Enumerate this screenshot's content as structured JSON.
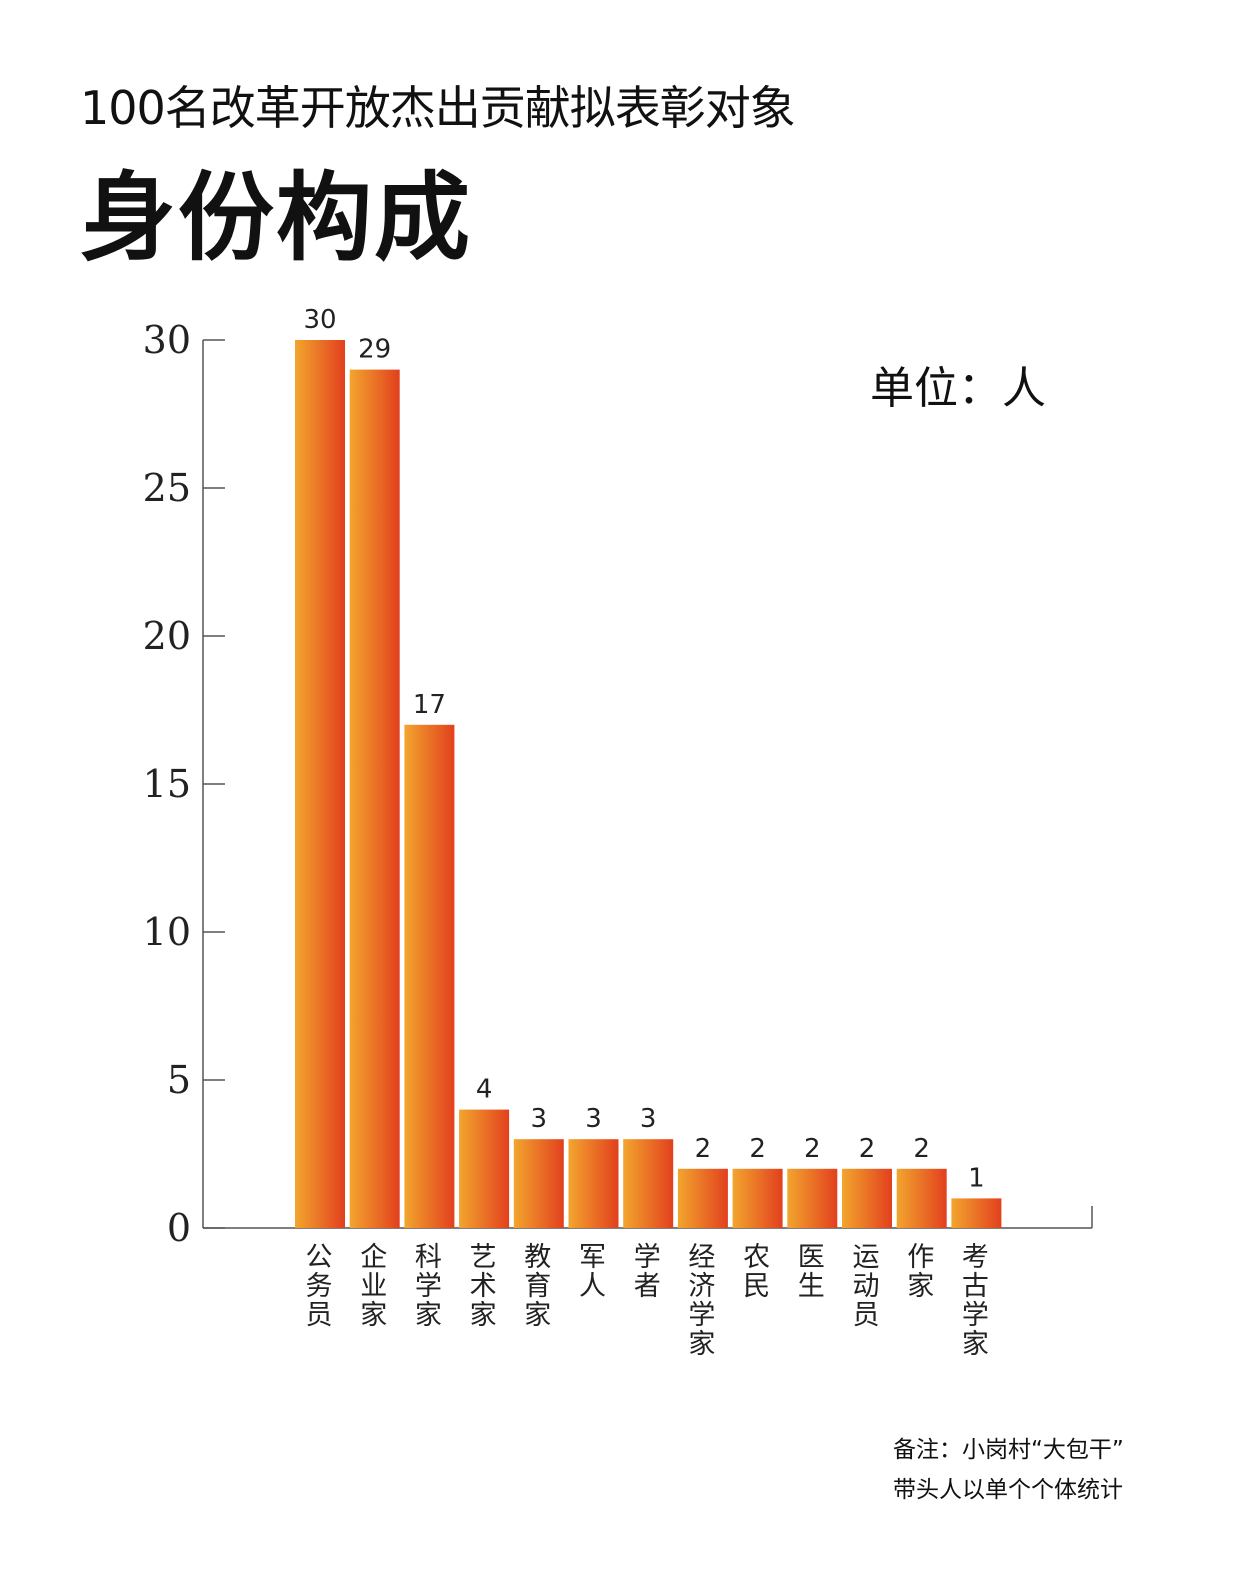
{
  "header": {
    "subtitle": "100名改革开放杰出贡献拟表彰对象",
    "title": "身份构成"
  },
  "unit_label": "单位：人",
  "note": {
    "line1": "备注：小岗村“大包干”",
    "line2": "带头人以单个个体统计"
  },
  "colors": {
    "bar_gradient_start": "#F2A52E",
    "bar_gradient_end": "#E2401E",
    "axis": "#555555"
  },
  "chart_data": {
    "type": "bar",
    "categories": [
      "公务员",
      "企业家",
      "科学家",
      "艺术家",
      "教育家",
      "军人",
      "学者",
      "经济学家",
      "农民",
      "医生",
      "运动员",
      "作家",
      "考古学家"
    ],
    "values": [
      30,
      29,
      17,
      4,
      3,
      3,
      3,
      2,
      2,
      2,
      2,
      2,
      1
    ],
    "yticks": [
      0,
      5,
      10,
      15,
      20,
      25,
      30
    ],
    "ylim": [
      0,
      30
    ],
    "grid": false,
    "legend": "none",
    "data_labels": true
  }
}
